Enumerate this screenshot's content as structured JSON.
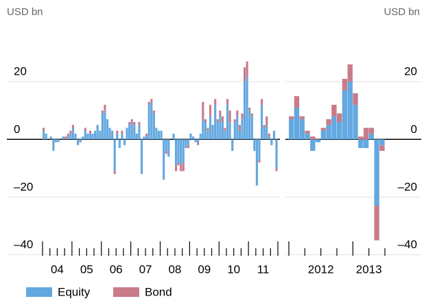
{
  "chart_data": [
    {
      "type": "bar",
      "stacked": true,
      "unit_label": "USD bn",
      "ylim": [
        -42,
        40
      ],
      "yticks": [
        {
          "value": -40,
          "label": "–40"
        },
        {
          "value": -20,
          "label": "–20"
        },
        0,
        20
      ],
      "xlim": [
        0,
        96
      ],
      "xticks": [
        {
          "value": 6,
          "label": "04"
        },
        {
          "value": 18,
          "label": "05"
        },
        {
          "value": 30,
          "label": "06"
        },
        {
          "value": 42,
          "label": "07"
        },
        {
          "value": 54,
          "label": "08"
        },
        {
          "value": 66,
          "label": "09"
        },
        {
          "value": 78,
          "label": "10"
        },
        {
          "value": 90,
          "label": "11"
        }
      ],
      "series": [
        {
          "name": "Equity",
          "color": "#63a8e0",
          "values": [
            3,
            2,
            0,
            1,
            -4,
            -1,
            -1,
            0,
            1,
            0,
            1,
            2,
            4,
            2,
            -2,
            -1,
            1,
            3,
            2,
            2,
            2,
            3,
            5,
            3,
            9,
            10,
            7,
            4,
            3,
            -11,
            2,
            -3,
            2,
            -2,
            4,
            5,
            6,
            5,
            2,
            5,
            -12,
            1,
            1,
            12,
            13,
            9,
            4,
            3,
            3,
            -14,
            -4,
            -6,
            0,
            2,
            -9,
            -8,
            -9,
            -8,
            -3,
            -2,
            2,
            1,
            -1,
            -1,
            2,
            7,
            6,
            3,
            8,
            5,
            12,
            6,
            8,
            6,
            3,
            12,
            6,
            -4,
            6,
            8,
            3,
            7,
            20,
            22,
            10,
            8,
            -4,
            -16,
            -7,
            12,
            4,
            5,
            1,
            -2,
            3,
            -10
          ]
        },
        {
          "name": "Bond",
          "color": "#c97b8a",
          "values": [
            1,
            0,
            0,
            0,
            0,
            0,
            0,
            0,
            0,
            1,
            1,
            1,
            1,
            0,
            0,
            0,
            0,
            1,
            0,
            1,
            0,
            0,
            0,
            0,
            1,
            2,
            0,
            0,
            0,
            -1,
            1,
            0,
            1,
            0,
            0,
            1,
            1,
            1,
            0,
            1,
            0,
            0,
            1,
            1,
            1,
            1,
            0,
            0,
            0,
            0,
            -1,
            0,
            0,
            0,
            -2,
            -1,
            -2,
            -3,
            0,
            -1,
            0,
            0,
            0,
            -1,
            0,
            6,
            1,
            1,
            4,
            0,
            2,
            1,
            2,
            2,
            1,
            2,
            4,
            0,
            1,
            2,
            2,
            2,
            5,
            5,
            1,
            1,
            0,
            0,
            -1,
            2,
            1,
            3,
            1,
            0,
            0,
            -1
          ]
        }
      ]
    },
    {
      "type": "bar",
      "stacked": true,
      "unit_label": "USD bn",
      "ylim": [
        -42,
        40
      ],
      "yticks": [
        {
          "value": -40,
          "label": "–40"
        },
        {
          "value": -20,
          "label": "–20"
        },
        0,
        20
      ],
      "xlim": [
        0,
        18
      ],
      "xticks": [
        {
          "value": 6,
          "label": "2012"
        },
        {
          "value": 15,
          "label": "2013"
        }
      ],
      "series": [
        {
          "color": "#63a8e0",
          "values": [
            7,
            11,
            7,
            2,
            -4,
            -1,
            3,
            5,
            8,
            6,
            17,
            20,
            12,
            -3,
            -3,
            2,
            -23,
            -2
          ]
        },
        {
          "color": "#c97b8a",
          "values": [
            1,
            4,
            1,
            1,
            1,
            0,
            1,
            2,
            4,
            3,
            4,
            6,
            4,
            1,
            4,
            2,
            -12,
            -2
          ]
        }
      ]
    }
  ]
}
